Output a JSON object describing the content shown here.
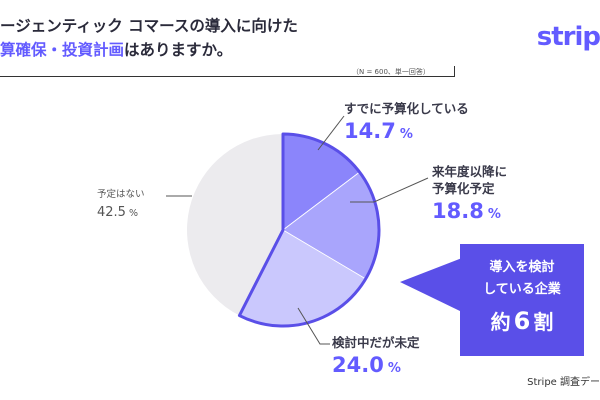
{
  "title": {
    "line1": "ージェンティック コマースの導入に向けた",
    "line2_accent": "算確保・投資計画",
    "line2_rest": "はありますか。"
  },
  "logo_text": "strip",
  "note": "（N = 600、単一回答）",
  "colors": {
    "accent": "#635bff",
    "callout": "#5a4fe8",
    "slice_1": "#8b85fb",
    "slice_2": "#a9a5fc",
    "slice_3": "#cac8fd",
    "slice_4": "#ecebee"
  },
  "chart_data": {
    "type": "pie",
    "title": "",
    "start_angle_deg": 0,
    "direction": "clockwise",
    "slices": [
      {
        "label": "すでに予算化している",
        "value": 14.7,
        "value_text": "14.7",
        "unit": "%"
      },
      {
        "label_line1": "来年度以降に",
        "label_line2": "予算化予定",
        "value": 18.8,
        "value_text": "18.8",
        "unit": "%"
      },
      {
        "label": "検討中だが未定",
        "value": 24.0,
        "value_text": "24.0",
        "unit": "%"
      },
      {
        "label": "予定はない",
        "value": 42.5,
        "value_text": "42.5",
        "unit": "%"
      }
    ],
    "highlight_group": [
      0,
      1,
      2
    ]
  },
  "callout": {
    "line1": "導入を検討",
    "line2": "している企業",
    "prefix": "約",
    "number": "6",
    "suffix": "割"
  },
  "source": "Stripe 調査デー"
}
